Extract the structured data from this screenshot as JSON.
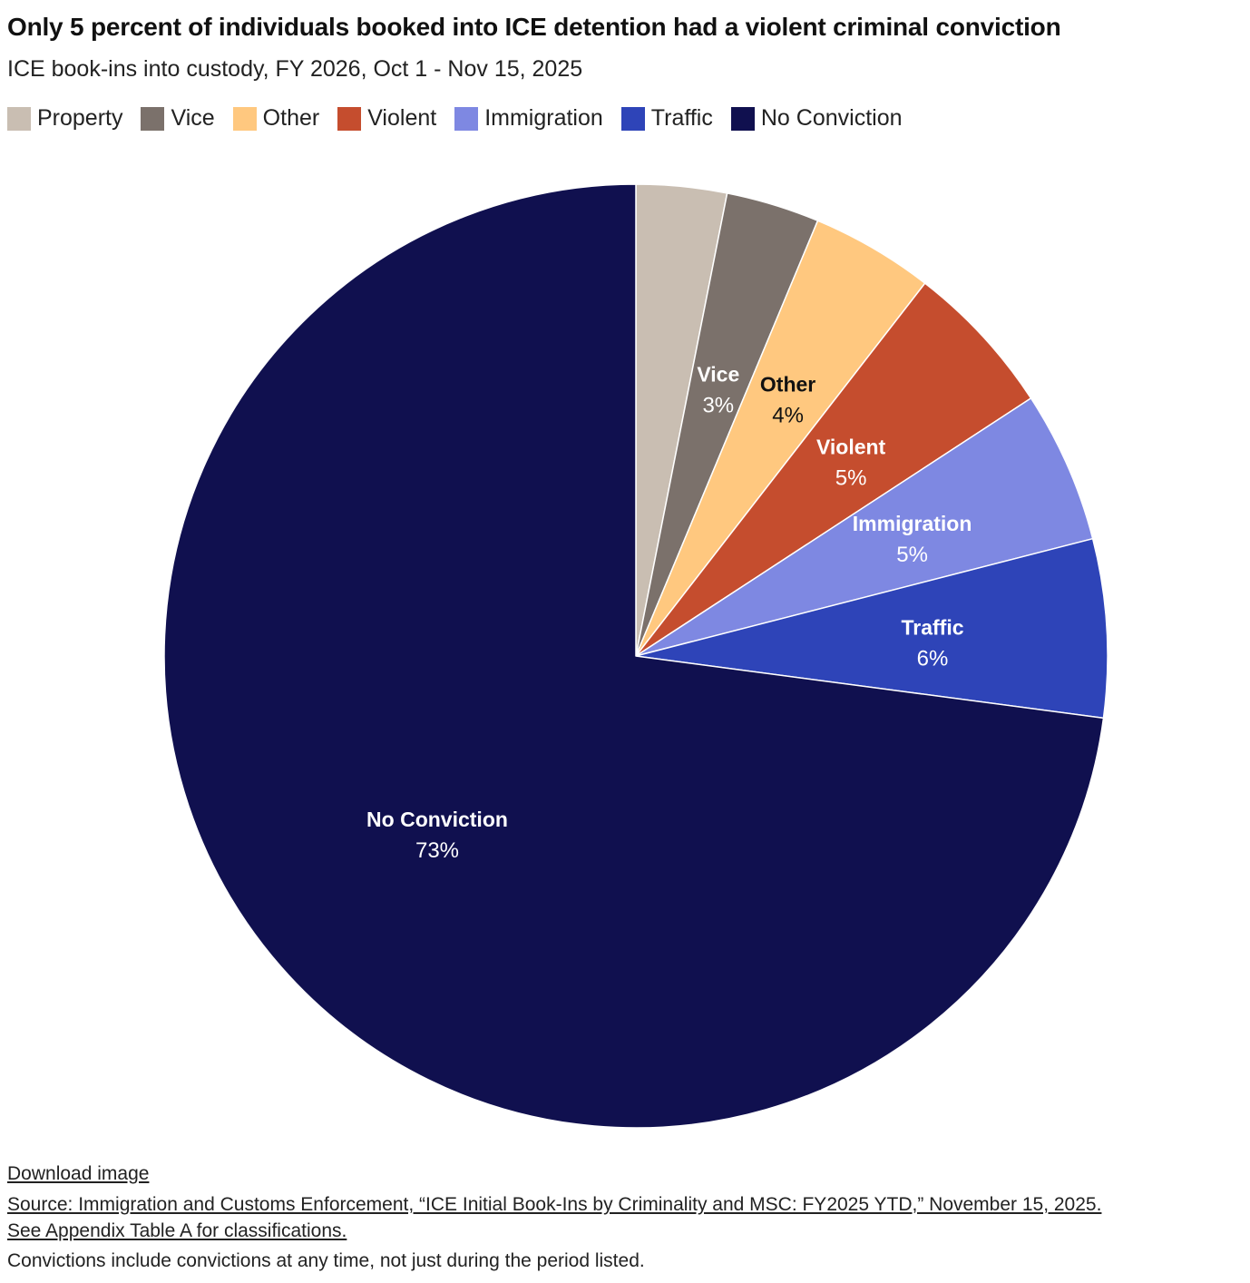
{
  "header": {
    "title": "Only 5 percent of individuals booked into ICE detention had a violent criminal conviction",
    "subtitle": "ICE book-ins into custody, FY 2026, Oct 1 - Nov 15, 2025"
  },
  "legend": [
    {
      "label": "Property",
      "color": "#c9beb2"
    },
    {
      "label": "Vice",
      "color": "#7b716b"
    },
    {
      "label": "Other",
      "color": "#ffc87f"
    },
    {
      "label": "Violent",
      "color": "#c54d2e"
    },
    {
      "label": "Immigration",
      "color": "#7e88e2"
    },
    {
      "label": "Traffic",
      "color": "#2e44b8"
    },
    {
      "label": "No Conviction",
      "color": "#10104f"
    }
  ],
  "chart_data": {
    "type": "pie",
    "title": "Only 5 percent of individuals booked into ICE detention had a violent criminal conviction",
    "subtitle": "ICE book-ins into custody, FY 2026, Oct 1 - Nov 15, 2025",
    "start_angle_deg": 0,
    "direction": "clockwise",
    "legend_position": "top",
    "slices": [
      {
        "name": "Property",
        "value": 3.1,
        "color": "#c9beb2",
        "label": null,
        "pct_label": null,
        "label_color": null
      },
      {
        "name": "Vice",
        "value": 3.2,
        "color": "#7b716b",
        "label": "Vice",
        "pct_label": "3%",
        "label_color": "#ffffff"
      },
      {
        "name": "Other",
        "value": 4.2,
        "color": "#ffc87f",
        "label": "Other",
        "pct_label": "4%",
        "label_color": "#111111"
      },
      {
        "name": "Violent",
        "value": 5.3,
        "color": "#c54d2e",
        "label": "Violent",
        "pct_label": "5%",
        "label_color": "#ffffff"
      },
      {
        "name": "Immigration",
        "value": 5.2,
        "color": "#7e88e2",
        "label": "Immigration",
        "pct_label": "5%",
        "label_color": "#ffffff"
      },
      {
        "name": "Traffic",
        "value": 6.1,
        "color": "#2e44b8",
        "label": "Traffic",
        "pct_label": "6%",
        "label_color": "#ffffff"
      },
      {
        "name": "No Conviction",
        "value": 72.9,
        "color": "#10104f",
        "label": "No Conviction",
        "pct_label": "73%",
        "label_color": "#ffffff"
      }
    ]
  },
  "footer": {
    "download": "Download image",
    "source_line1": "Source: Immigration and Customs Enforcement, “ICE Initial Book-Ins by Criminality and MSC: FY2025 YTD,” November 15, 2025.",
    "source_line2": "See Appendix Table A for classifications.",
    "note": "Convictions include convictions at any time, not just during the period listed."
  }
}
